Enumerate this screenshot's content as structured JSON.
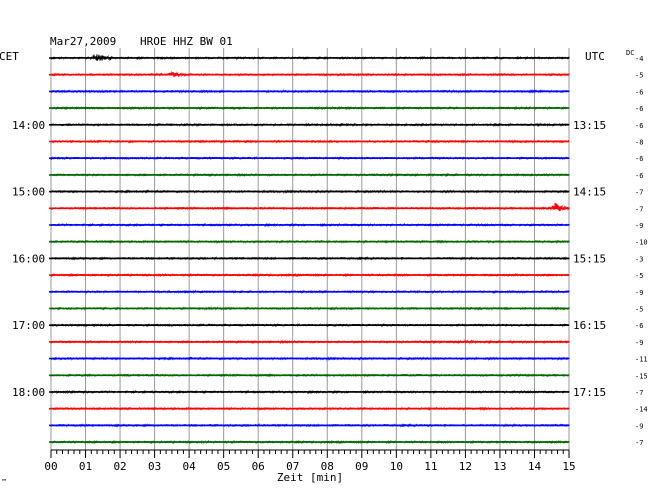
{
  "header": {
    "date": "Mar27,2009",
    "station": "HROE HHZ BW 01",
    "left_timezone": "CET",
    "right_timezone": "UTC",
    "dc_label": "DC",
    "footer_mark": "™"
  },
  "chart_data": {
    "type": "line",
    "title": "Mar27,2009   HROE HHZ BW 01",
    "xlabel": "Zeit [min]",
    "xlim": [
      0,
      15
    ],
    "xticks": [
      "00",
      "01",
      "02",
      "03",
      "04",
      "05",
      "06",
      "07",
      "08",
      "09",
      "10",
      "11",
      "12",
      "13",
      "14",
      "15"
    ],
    "trace_colors": [
      "#000000",
      "#ff0000",
      "#0000ff",
      "#006600"
    ],
    "grid": true,
    "left_hour_labels": [
      {
        "row": 4,
        "label": "14:00"
      },
      {
        "row": 8,
        "label": "15:00"
      },
      {
        "row": 12,
        "label": "16:00"
      },
      {
        "row": 16,
        "label": "17:00"
      },
      {
        "row": 20,
        "label": "18:00"
      }
    ],
    "right_hour_labels": [
      {
        "row": 4,
        "label": "13:15"
      },
      {
        "row": 8,
        "label": "14:15"
      },
      {
        "row": 12,
        "label": "15:15"
      },
      {
        "row": 16,
        "label": "16:15"
      },
      {
        "row": 20,
        "label": "17:15"
      }
    ],
    "dc_offsets": [
      "-4",
      "-5",
      "-6",
      "-6",
      "-6",
      "-8",
      "-6",
      "-6",
      "-7",
      "-7",
      "-9",
      "-10",
      "-3",
      "-5",
      "-9",
      "-5",
      "-6",
      "-9",
      "-11",
      "-15",
      "-7",
      "-14",
      "-9",
      "-7"
    ],
    "events": [
      {
        "row": 0,
        "minute": 1.3,
        "amplitude": "large",
        "duration_min": 0.8
      },
      {
        "row": 1,
        "minute": 3.5,
        "amplitude": "medium",
        "duration_min": 1.0
      },
      {
        "row": 9,
        "minute": 14.6,
        "amplitude": "large",
        "duration_min": 0.7
      },
      {
        "row": 17,
        "minute": 12.0,
        "amplitude": "small",
        "duration_min": 1.0
      }
    ]
  }
}
